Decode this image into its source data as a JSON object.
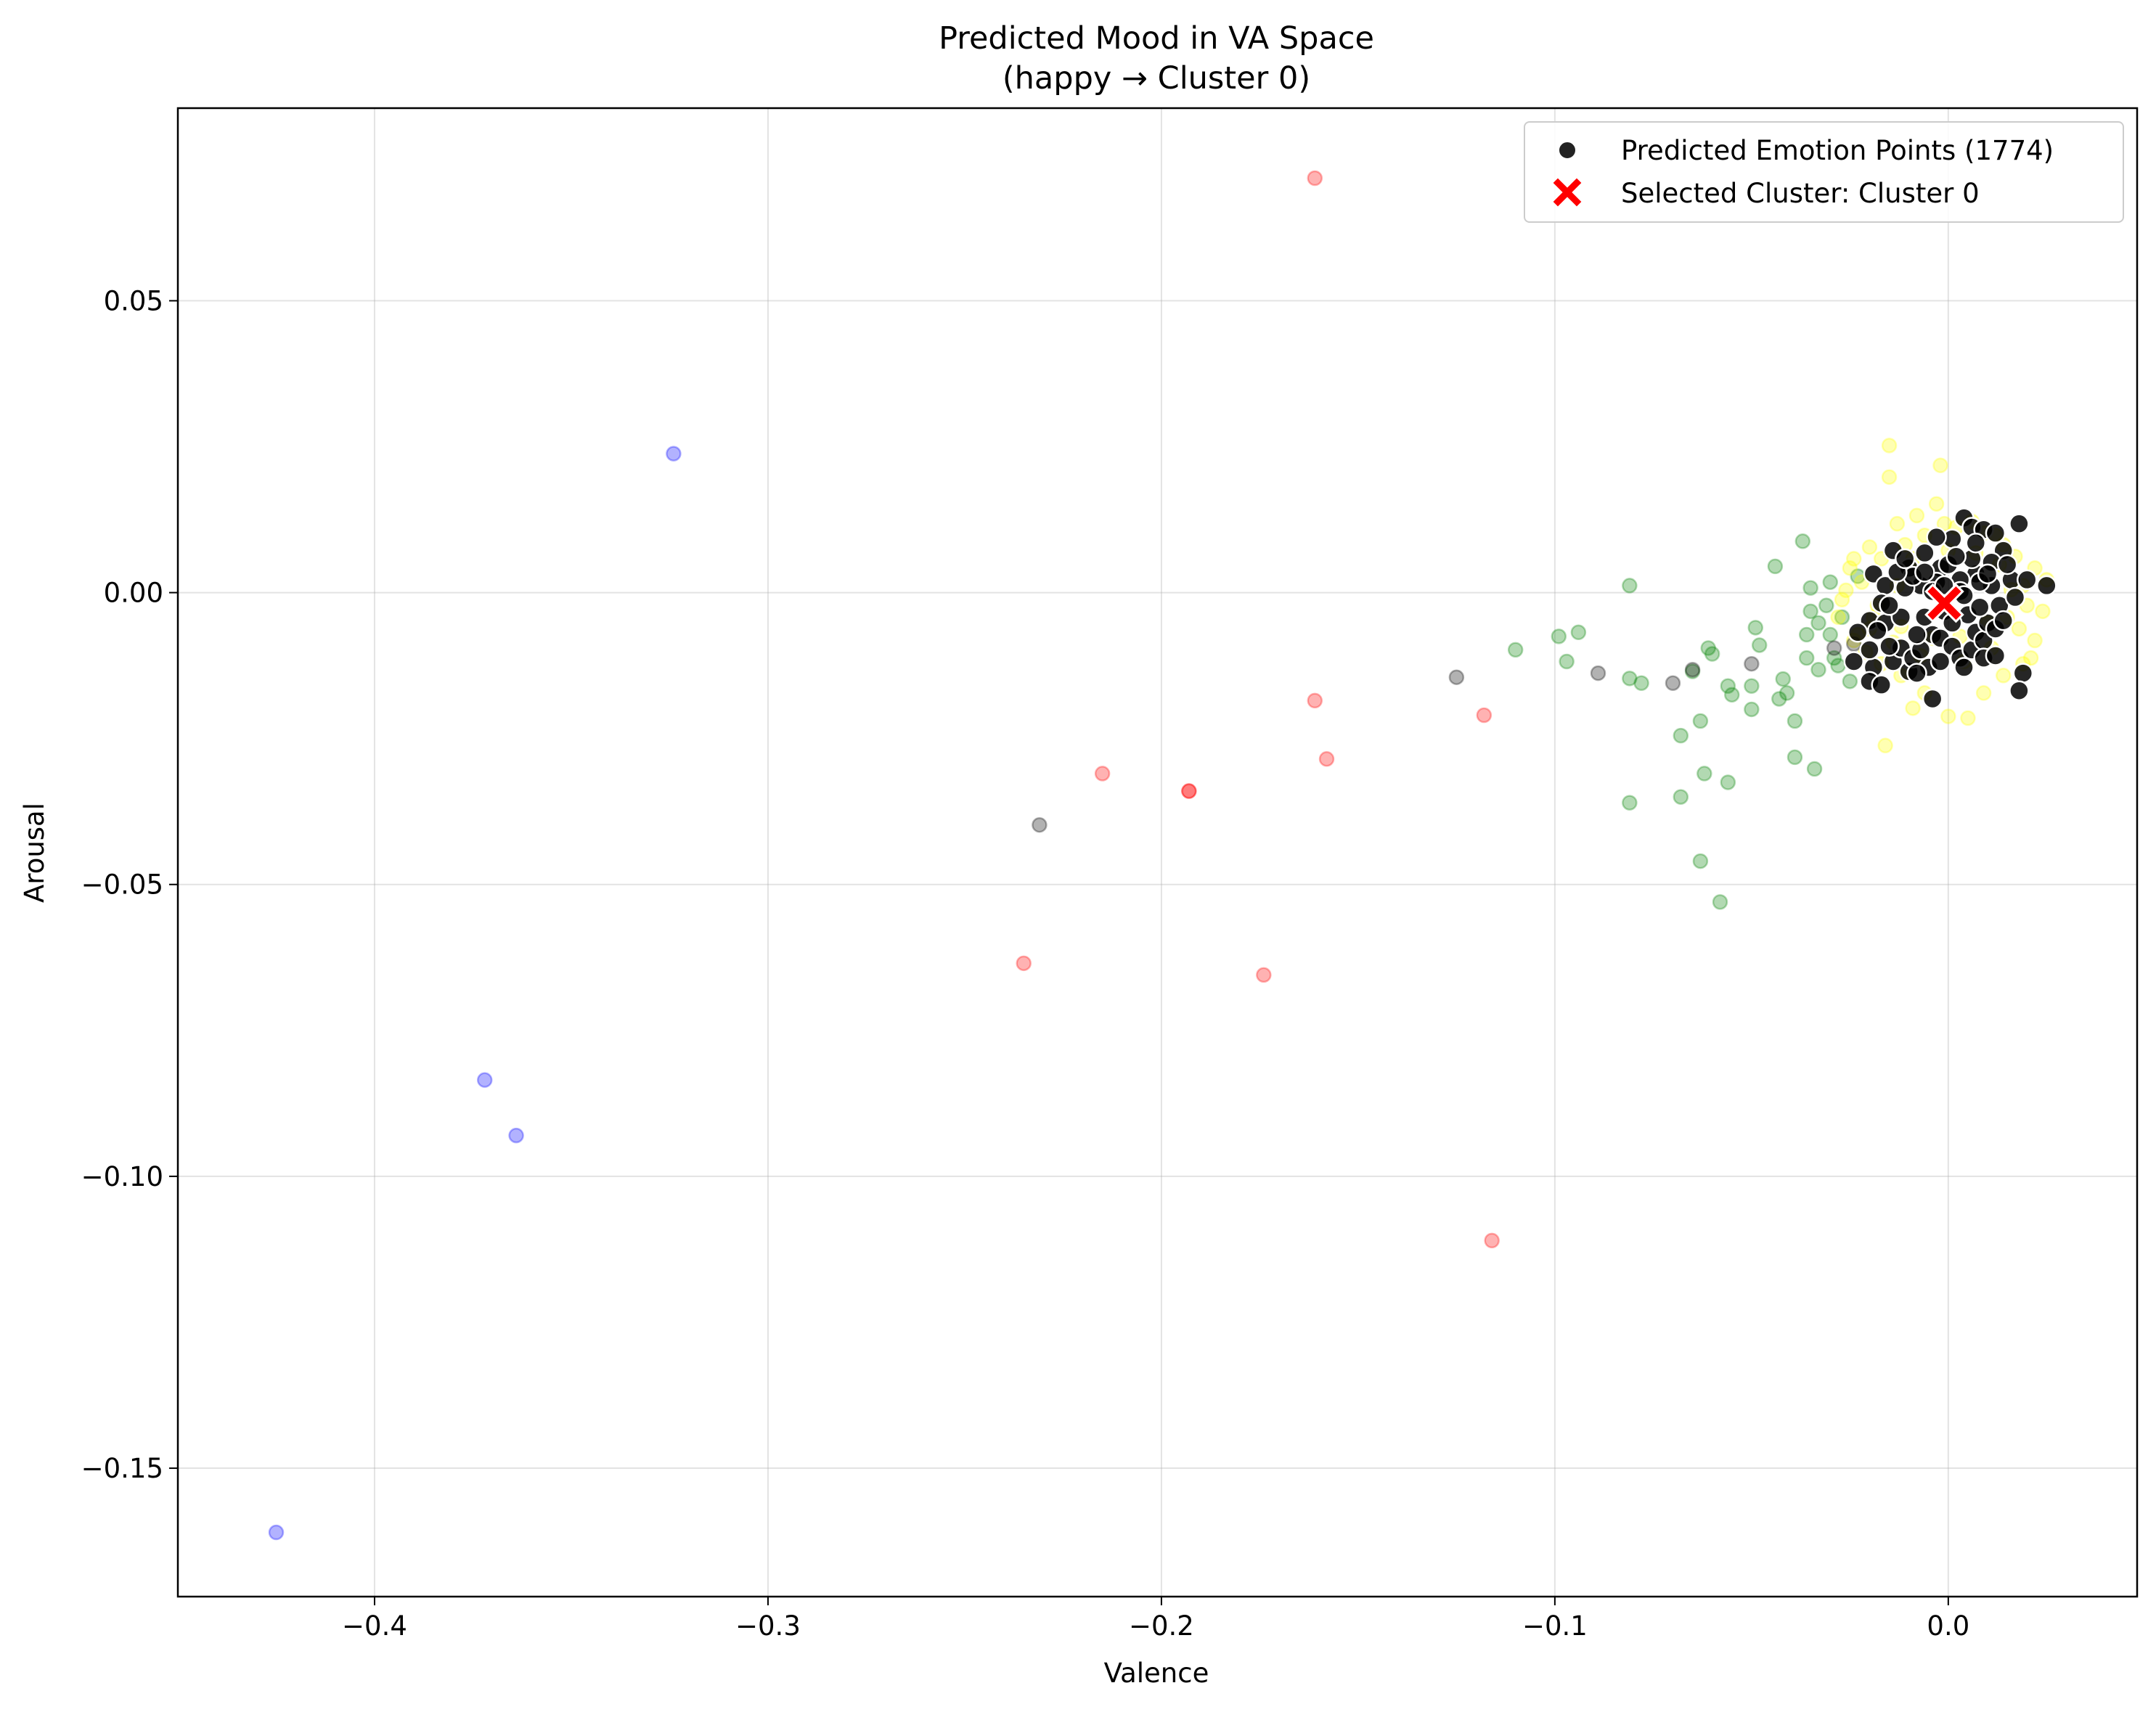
{
  "chart_data": {
    "type": "scatter",
    "title": "Predicted Mood in VA Space",
    "subtitle": "(happy → Cluster 0)",
    "xlabel": "Valence",
    "ylabel": "Arousal",
    "xlim": [
      -0.45,
      0.048
    ],
    "ylim": [
      -0.172,
      0.083
    ],
    "x_ticks": [
      -0.4,
      -0.3,
      -0.2,
      -0.1,
      0.0
    ],
    "x_tick_labels": [
      "−0.4",
      "−0.3",
      "−0.2",
      "−0.1",
      "0.0"
    ],
    "y_ticks": [
      0.05,
      0.0,
      -0.05,
      -0.1,
      -0.15
    ],
    "y_tick_labels": [
      "0.05",
      "0.00",
      "−0.05",
      "−0.10",
      "−0.15"
    ],
    "grid": true,
    "legend_position": "top-right",
    "legend": [
      {
        "label": "Predicted Emotion Points (1774)",
        "marker": "circle",
        "color": "#222222"
      },
      {
        "label": "Selected Cluster: Cluster 0",
        "marker": "x",
        "color": "#ff0000"
      }
    ],
    "background_groups": [
      {
        "color": "#0000ff",
        "points": [
          [
            -0.425,
            -0.161
          ],
          [
            -0.372,
            -0.0835
          ],
          [
            -0.364,
            -0.093
          ],
          [
            -0.324,
            0.0238
          ]
        ]
      },
      {
        "color": "#ff0000",
        "points": [
          [
            -0.161,
            0.071
          ],
          [
            -0.235,
            -0.0635
          ],
          [
            -0.215,
            -0.031
          ],
          [
            -0.193,
            -0.034
          ],
          [
            -0.174,
            -0.0655
          ],
          [
            -0.161,
            -0.0185
          ],
          [
            -0.158,
            -0.0285
          ],
          [
            -0.118,
            -0.021
          ],
          [
            -0.116,
            -0.111
          ],
          [
            -0.193,
            -0.034
          ]
        ]
      },
      {
        "color": "#008000",
        "points": [
          [
            -0.081,
            0.0012
          ],
          [
            -0.11,
            -0.0098
          ],
          [
            -0.099,
            -0.0075
          ],
          [
            -0.094,
            -0.0068
          ],
          [
            -0.097,
            -0.0118
          ],
          [
            -0.081,
            -0.0147
          ],
          [
            -0.078,
            -0.0155
          ],
          [
            -0.081,
            -0.036
          ],
          [
            -0.068,
            -0.0245
          ],
          [
            -0.068,
            -0.035
          ],
          [
            -0.063,
            -0.022
          ],
          [
            -0.062,
            -0.031
          ],
          [
            -0.063,
            -0.046
          ],
          [
            -0.058,
            -0.053
          ],
          [
            -0.056,
            -0.016
          ],
          [
            -0.055,
            -0.0175
          ],
          [
            -0.056,
            -0.0325
          ],
          [
            -0.061,
            -0.0095
          ],
          [
            -0.06,
            -0.0105
          ],
          [
            -0.05,
            -0.02
          ],
          [
            -0.049,
            -0.006
          ],
          [
            -0.048,
            -0.009
          ],
          [
            -0.044,
            0.0045
          ],
          [
            -0.043,
            -0.0182
          ],
          [
            -0.042,
            -0.0148
          ],
          [
            -0.041,
            -0.0172
          ],
          [
            -0.039,
            -0.022
          ],
          [
            -0.039,
            -0.0282
          ],
          [
            -0.037,
            0.0088
          ],
          [
            -0.035,
            0.0008
          ],
          [
            -0.035,
            -0.0032
          ],
          [
            -0.034,
            -0.0302
          ],
          [
            -0.033,
            -0.0132
          ],
          [
            -0.031,
            -0.0022
          ],
          [
            -0.03,
            -0.0072
          ],
          [
            -0.029,
            -0.0112
          ],
          [
            -0.027,
            -0.0042
          ],
          [
            -0.025,
            -0.0152
          ],
          [
            -0.023,
            0.0028
          ],
          [
            -0.036,
            -0.0112
          ],
          [
            -0.036,
            -0.0072
          ],
          [
            -0.05,
            -0.016
          ],
          [
            -0.065,
            -0.0135
          ],
          [
            -0.03,
            0.0018
          ],
          [
            -0.028,
            -0.0125
          ],
          [
            -0.033,
            -0.0052
          ]
        ]
      },
      {
        "color": "#ffff00",
        "points": [
          [
            -0.015,
            0.0252
          ],
          [
            -0.015,
            0.0198
          ],
          [
            -0.002,
            0.0218
          ],
          [
            -0.003,
            0.0152
          ],
          [
            -0.008,
            0.0132
          ],
          [
            -0.013,
            0.0118
          ],
          [
            -0.001,
            0.0118
          ],
          [
            0.006,
            0.0122
          ],
          [
            0.012,
            0.0098
          ],
          [
            -0.02,
            0.0078
          ],
          [
            -0.024,
            0.0058
          ],
          [
            -0.025,
            0.0042
          ],
          [
            -0.022,
            0.0018
          ],
          [
            -0.027,
            -0.0012
          ],
          [
            -0.028,
            -0.0042
          ],
          [
            -0.02,
            -0.0062
          ],
          [
            -0.024,
            -0.0082
          ],
          [
            -0.021,
            -0.0102
          ],
          [
            -0.017,
            -0.0122
          ],
          [
            -0.012,
            -0.0142
          ],
          [
            -0.006,
            -0.0172
          ],
          [
            -0.009,
            -0.0198
          ],
          [
            -0.016,
            -0.0262
          ],
          [
            0.0,
            -0.0212
          ],
          [
            0.005,
            -0.0215
          ],
          [
            0.009,
            -0.0172
          ],
          [
            0.014,
            -0.0142
          ],
          [
            0.019,
            -0.0122
          ],
          [
            0.021,
            -0.0112
          ],
          [
            0.022,
            -0.0082
          ],
          [
            0.018,
            -0.0062
          ],
          [
            0.024,
            -0.0032
          ],
          [
            0.025,
            0.0022
          ],
          [
            0.022,
            0.0042
          ],
          [
            0.017,
            0.0062
          ],
          [
            0.014,
            0.0082
          ],
          [
            0.009,
            0.0102
          ],
          [
            0.002,
            0.0112
          ],
          [
            -0.006,
            0.0098
          ],
          [
            -0.011,
            0.0082
          ],
          [
            -0.017,
            0.0058
          ],
          [
            -0.018,
            -0.0022
          ],
          [
            -0.019,
            -0.0042
          ],
          [
            -0.014,
            -0.0085
          ],
          [
            -0.007,
            -0.0108
          ],
          [
            0.004,
            -0.0118
          ],
          [
            0.011,
            -0.0095
          ],
          [
            0.015,
            -0.0042
          ],
          [
            0.016,
            0.0005
          ],
          [
            0.013,
            0.0048
          ],
          [
            0.007,
            0.0068
          ],
          [
            0.0,
            0.0072
          ],
          [
            -0.009,
            0.0058
          ],
          [
            -0.013,
            0.0012
          ],
          [
            -0.012,
            -0.0058
          ],
          [
            -0.004,
            -0.0078
          ],
          [
            0.003,
            -0.0075
          ],
          [
            0.01,
            -0.0052
          ],
          [
            0.02,
            -0.0022
          ],
          [
            0.019,
            0.0012
          ],
          [
            -0.023,
            -0.0072
          ],
          [
            -0.026,
            0.0004
          ]
        ]
      },
      {
        "color": "#000000",
        "points": [
          [
            -0.231,
            -0.0398
          ],
          [
            -0.125,
            -0.0145
          ],
          [
            -0.089,
            -0.0138
          ],
          [
            -0.07,
            -0.0155
          ],
          [
            -0.065,
            -0.0132
          ],
          [
            -0.05,
            -0.0122
          ],
          [
            -0.029,
            -0.0095
          ],
          [
            -0.024,
            -0.0088
          ]
        ]
      }
    ],
    "series": [
      {
        "name": "Predicted Emotion Points (1774)",
        "color": "#000000",
        "points": [
          [
            -0.019,
            0.0032
          ],
          [
            -0.014,
            0.0072
          ],
          [
            -0.01,
            0.0042
          ],
          [
            -0.006,
            0.0068
          ],
          [
            -0.002,
            0.0042
          ],
          [
            0.001,
            0.0092
          ],
          [
            0.004,
            0.0128
          ],
          [
            0.006,
            0.0112
          ],
          [
            0.009,
            0.0108
          ],
          [
            0.012,
            0.0102
          ],
          [
            0.018,
            0.0118
          ],
          [
            0.014,
            0.0072
          ],
          [
            0.011,
            0.0052
          ],
          [
            0.007,
            0.0032
          ],
          [
            0.003,
            0.0022
          ],
          [
            0.0,
            0.0048
          ],
          [
            -0.003,
            0.0018
          ],
          [
            -0.007,
            0.0012
          ],
          [
            -0.011,
            0.0008
          ],
          [
            -0.016,
            0.0012
          ],
          [
            -0.017,
            -0.0018
          ],
          [
            -0.02,
            -0.0048
          ],
          [
            -0.016,
            -0.0052
          ],
          [
            -0.023,
            -0.0068
          ],
          [
            -0.024,
            -0.0118
          ],
          [
            -0.019,
            -0.0128
          ],
          [
            -0.02,
            -0.0152
          ],
          [
            -0.014,
            -0.0118
          ],
          [
            -0.012,
            -0.0095
          ],
          [
            -0.015,
            -0.0092
          ],
          [
            -0.01,
            -0.0135
          ],
          [
            -0.009,
            -0.0112
          ],
          [
            -0.007,
            -0.0098
          ],
          [
            -0.005,
            -0.0128
          ],
          [
            -0.004,
            -0.0072
          ],
          [
            -0.002,
            -0.0078
          ],
          [
            0.001,
            -0.0092
          ],
          [
            0.003,
            -0.0112
          ],
          [
            0.004,
            -0.0128
          ],
          [
            0.006,
            -0.0098
          ],
          [
            0.007,
            -0.0068
          ],
          [
            0.009,
            -0.0082
          ],
          [
            0.01,
            -0.0052
          ],
          [
            0.012,
            -0.0062
          ],
          [
            0.013,
            -0.0022
          ],
          [
            0.011,
            0.0012
          ],
          [
            0.016,
            0.0022
          ],
          [
            0.017,
            -0.0008
          ],
          [
            0.02,
            0.0022
          ],
          [
            0.025,
            0.0012
          ],
          [
            0.019,
            -0.0138
          ],
          [
            0.018,
            -0.0168
          ],
          [
            0.009,
            -0.0112
          ],
          [
            -0.004,
            -0.0182
          ],
          [
            -0.017,
            -0.0158
          ],
          [
            -0.02,
            -0.0098
          ],
          [
            -0.009,
            0.0028
          ],
          [
            -0.004,
            0.0002
          ],
          [
            0.003,
            0.0002
          ],
          [
            0.008,
            0.0018
          ],
          [
            0.01,
            0.0032
          ],
          [
            0.006,
            0.0058
          ],
          [
            -0.001,
            -0.0032
          ],
          [
            -0.006,
            -0.0042
          ],
          [
            0.005,
            -0.0038
          ],
          [
            -0.012,
            -0.0042
          ],
          [
            -0.013,
            0.0035
          ],
          [
            -0.008,
            -0.0072
          ],
          [
            0.002,
            0.0062
          ],
          [
            -0.003,
            0.0095
          ],
          [
            0.012,
            -0.0108
          ],
          [
            -0.015,
            -0.0022
          ],
          [
            0.015,
            0.0048
          ],
          [
            -0.018,
            -0.0065
          ],
          [
            0.008,
            -0.0025
          ],
          [
            -0.006,
            0.0035
          ],
          [
            0.001,
            -0.0052
          ],
          [
            -0.011,
            0.0058
          ],
          [
            0.007,
            0.0085
          ],
          [
            -0.001,
            0.0012
          ],
          [
            0.014,
            -0.0048
          ],
          [
            -0.008,
            -0.0138
          ],
          [
            0.004,
            -0.0005
          ],
          [
            -0.002,
            -0.0118
          ]
        ]
      }
    ],
    "selected_cluster": {
      "label": "Selected Cluster: Cluster 0",
      "x": -0.001,
      "y": -0.0018
    }
  }
}
